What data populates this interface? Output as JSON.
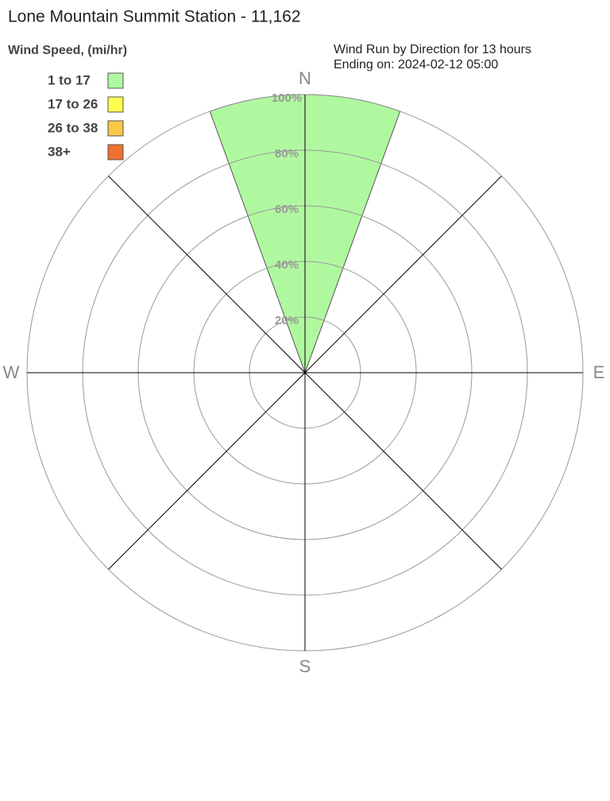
{
  "chart_data": {
    "type": "windrose",
    "title": "Lone Mountain Summit Station - 11,162",
    "legend_title": "Wind Speed, (mi/hr)",
    "subtitle": [
      "Wind Run by Direction for 13 hours",
      "Ending on: 2024-02-12 05:00"
    ],
    "directions": [
      "N",
      null,
      "E",
      null,
      "S",
      null,
      "W",
      null
    ],
    "series": [
      {
        "name": "1 to 17",
        "color": "#b0f8a0",
        "values": [
          100,
          0,
          0,
          0,
          0,
          0,
          0,
          0
        ]
      },
      {
        "name": "17 to 26",
        "color": "#ffff50",
        "values": [
          0,
          0,
          0,
          0,
          0,
          0,
          0,
          0
        ]
      },
      {
        "name": "26 to 38",
        "color": "#f8c848",
        "values": [
          0,
          0,
          0,
          0,
          0,
          0,
          0,
          0
        ]
      },
      {
        "name": "38+",
        "color": "#f07030",
        "values": [
          0,
          0,
          0,
          0,
          0,
          0,
          0,
          0
        ]
      }
    ],
    "rlim": [
      0,
      100
    ],
    "rticks": [
      {
        "value": 20,
        "label": "20%"
      },
      {
        "value": 40,
        "label": "40%"
      },
      {
        "value": 60,
        "label": "60%"
      },
      {
        "value": 80,
        "label": "80%"
      },
      {
        "value": 100,
        "label": "100%"
      }
    ],
    "grid": true
  }
}
